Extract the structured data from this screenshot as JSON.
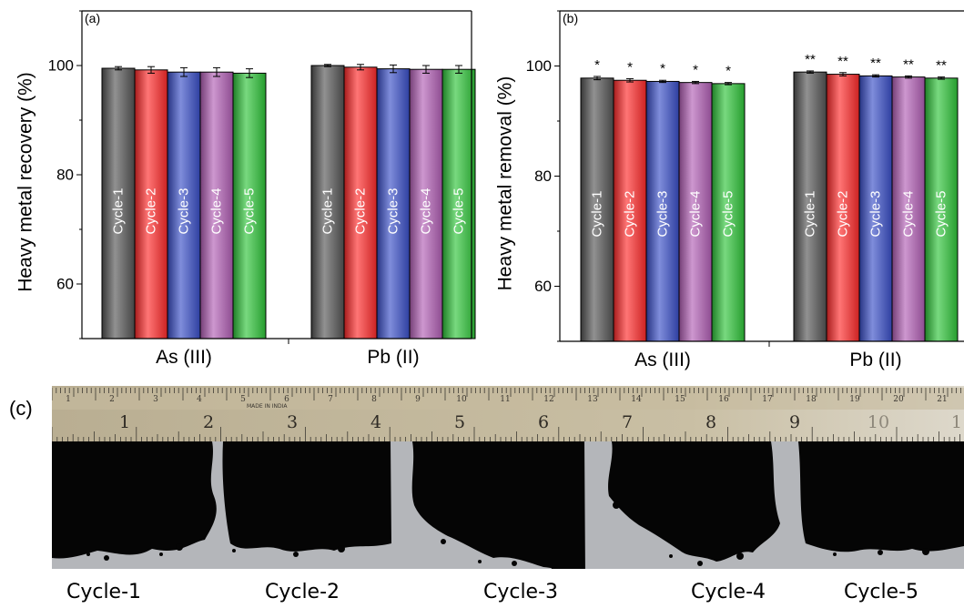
{
  "chart_data": [
    {
      "panel_label": "(a)",
      "type": "bar",
      "ylabel": "Heavy metal recovery (%)",
      "ylim": [
        50,
        110
      ],
      "yticks": [
        60,
        80,
        100
      ],
      "categories": [
        "As (III)",
        "Pb (II)"
      ],
      "series": [
        {
          "name": "Cycle-1",
          "values": [
            99.5,
            100.0
          ],
          "errors": [
            0.3,
            0.2
          ],
          "color": "#555555"
        },
        {
          "name": "Cycle-2",
          "values": [
            99.2,
            99.7
          ],
          "errors": [
            0.6,
            0.5
          ],
          "color": "#ff2a2a"
        },
        {
          "name": "Cycle-3",
          "values": [
            98.8,
            99.4
          ],
          "errors": [
            0.8,
            0.7
          ],
          "color": "#3a4fc8"
        },
        {
          "name": "Cycle-4",
          "values": [
            98.8,
            99.3
          ],
          "errors": [
            0.8,
            0.7
          ],
          "color": "#b25fb5"
        },
        {
          "name": "Cycle-5",
          "values": [
            98.6,
            99.3
          ],
          "errors": [
            0.8,
            0.7
          ],
          "color": "#2fc43a"
        }
      ],
      "annotations": []
    },
    {
      "panel_label": "(b)",
      "type": "bar",
      "ylabel": "Heavy metal removal (%)",
      "ylim": [
        50,
        110
      ],
      "yticks": [
        60,
        80,
        100
      ],
      "categories": [
        "As (III)",
        "Pb (II)"
      ],
      "series": [
        {
          "name": "Cycle-1",
          "values": [
            97.8,
            98.9
          ],
          "errors": [
            0.3,
            0.2
          ],
          "color": "#555555"
        },
        {
          "name": "Cycle-2",
          "values": [
            97.4,
            98.5
          ],
          "errors": [
            0.3,
            0.3
          ],
          "color": "#ff2a2a"
        },
        {
          "name": "Cycle-3",
          "values": [
            97.2,
            98.2
          ],
          "errors": [
            0.2,
            0.2
          ],
          "color": "#3a4fc8"
        },
        {
          "name": "Cycle-4",
          "values": [
            97.0,
            98.0
          ],
          "errors": [
            0.2,
            0.2
          ],
          "color": "#b25fb5"
        },
        {
          "name": "Cycle-5",
          "values": [
            96.8,
            97.8
          ],
          "errors": [
            0.2,
            0.2
          ],
          "color": "#2fc43a"
        }
      ],
      "annotations": [
        [
          "*",
          "*",
          "*",
          "*",
          "*"
        ],
        [
          "**",
          "**",
          "**",
          "**",
          "**"
        ]
      ]
    }
  ],
  "photo": {
    "panel_label": "(c)",
    "ruler_numbers": [
      "1",
      "2",
      "3",
      "4",
      "5",
      "6",
      "7",
      "8",
      "9",
      "10",
      "11",
      "12"
    ],
    "ruler_text": "MADE IN INDIA",
    "samples": [
      "Cycle-1",
      "Cycle-2",
      "Cycle-3",
      "Cycle-4",
      "Cycle-5"
    ]
  },
  "colors": {
    "ruler": "#c9bfa4",
    "photo_background": "#b4b6ba",
    "sample": "#050505"
  }
}
